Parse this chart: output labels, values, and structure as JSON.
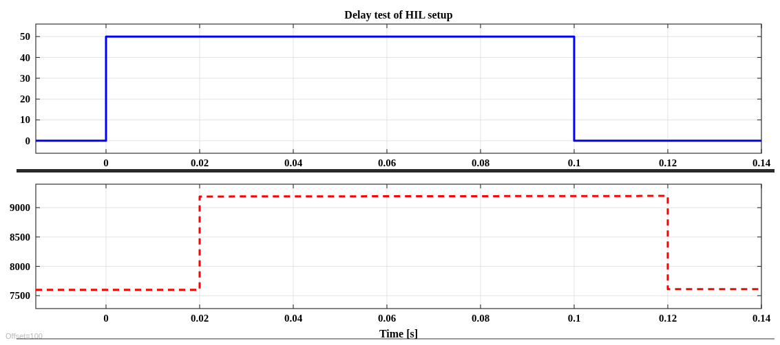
{
  "chart_data": [
    {
      "type": "line",
      "title": "Delay test of HIL setup",
      "xlim": [
        -0.015,
        0.14
      ],
      "xticks": [
        0,
        0.02,
        0.04,
        0.06,
        0.08,
        0.1,
        0.12,
        0.14
      ],
      "ylim": [
        -6,
        56
      ],
      "yticks": [
        0,
        10,
        20,
        30,
        40,
        50
      ],
      "grid": true,
      "line_style": "solid",
      "series": [
        {
          "color": "#0000ff",
          "x": [
            -0.015,
            0,
            0,
            0.1,
            0.1,
            0.14
          ],
          "values": [
            0,
            0,
            50,
            50,
            0,
            0
          ]
        }
      ]
    },
    {
      "type": "line",
      "xlabel": "Time [s]",
      "annotations": [
        "Offset=100"
      ],
      "xlim": [
        -0.015,
        0.14
      ],
      "xticks": [
        0,
        0.02,
        0.04,
        0.06,
        0.08,
        0.1,
        0.12,
        0.14
      ],
      "ylim": [
        7280,
        9400
      ],
      "yticks": [
        7500,
        8000,
        8500,
        9000
      ],
      "grid": true,
      "line_style": "dashed",
      "series": [
        {
          "color": "#ff0000",
          "x": [
            -0.015,
            0.02,
            0.02,
            0.12,
            0.12,
            0.14
          ],
          "values": [
            7600,
            7600,
            9190,
            9200,
            7610,
            7610
          ]
        }
      ]
    }
  ]
}
